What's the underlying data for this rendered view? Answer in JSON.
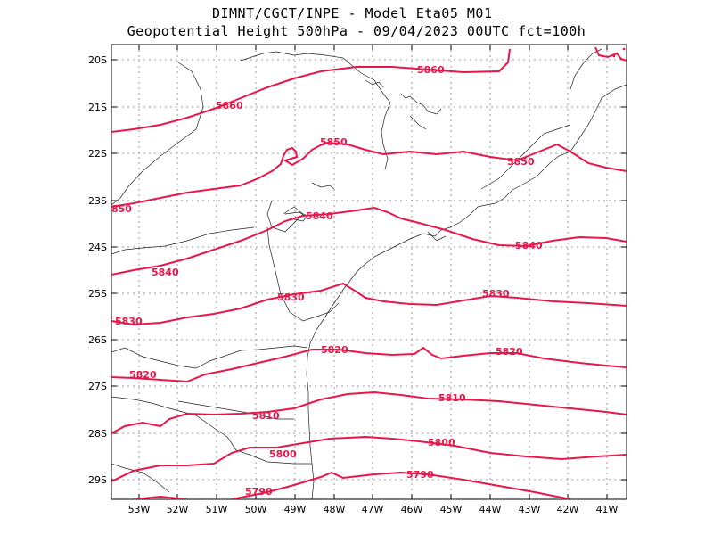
{
  "title": {
    "line1": "DIMNT/CGCT/INPE -   Model Eta05_M01_",
    "line2": "Geopotential Height 500hPa -  09/04/2023 00UTC fct=100h"
  },
  "map": {
    "lat_labels": [
      "20S",
      "21S",
      "22S",
      "23S",
      "24S",
      "25S",
      "26S",
      "27S",
      "28S",
      "29S"
    ],
    "lon_labels": [
      "53W",
      "52W",
      "51W",
      "50W",
      "49W",
      "48W",
      "47W",
      "46W",
      "45W",
      "44W",
      "43W",
      "42W",
      "41W"
    ],
    "contour_color": "#e8174a",
    "contours": [
      {
        "label": "5860",
        "mark": "5860"
      },
      {
        "label": "5860",
        "mark": "5860"
      },
      {
        "label": "5850",
        "mark": "5850"
      },
      {
        "label": "5850",
        "mark": "5850"
      },
      {
        "label": "850",
        "mark": "850"
      },
      {
        "label": "5840",
        "mark": "5840"
      },
      {
        "label": "5840",
        "mark": "5840"
      },
      {
        "label": "5840",
        "mark": "5840"
      },
      {
        "label": "5830",
        "mark": "5830"
      },
      {
        "label": "5830",
        "mark": "5830"
      },
      {
        "label": "5830",
        "mark": "5830"
      },
      {
        "label": "5820",
        "mark": "5820"
      },
      {
        "label": "5820",
        "mark": "5820"
      },
      {
        "label": "5820",
        "mark": "5820"
      },
      {
        "label": "5810",
        "mark": "5810"
      },
      {
        "label": "5810",
        "mark": "5810"
      },
      {
        "label": "5800",
        "mark": "5800"
      },
      {
        "label": "5800",
        "mark": "5800"
      },
      {
        "label": "5790",
        "mark": "5790"
      },
      {
        "label": "5790",
        "mark": "5790"
      }
    ]
  }
}
